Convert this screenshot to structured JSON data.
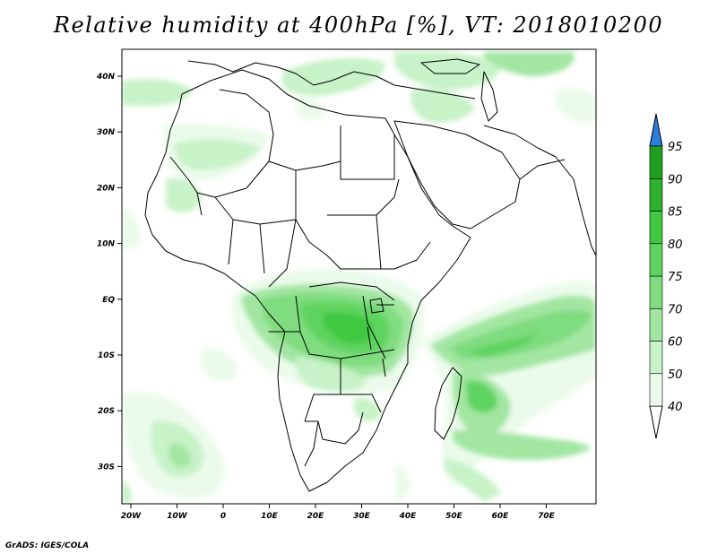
{
  "title": "Relative humidity at 400hPa [%], VT: 2018010200",
  "credit": "GrADS: IGES/COLA",
  "map": {
    "lon_labels": [
      "20W",
      "10W",
      "0",
      "10E",
      "20E",
      "30E",
      "40E",
      "50E",
      "60E",
      "70E"
    ],
    "lat_labels": [
      "40N",
      "30N",
      "20N",
      "10N",
      "EQ",
      "10S",
      "20S",
      "30S"
    ],
    "frame_color": "#000000"
  },
  "colorbar": {
    "levels": [
      "40",
      "50",
      "60",
      "70",
      "75",
      "80",
      "85",
      "90",
      "95"
    ],
    "colors": [
      "#ebfbeb",
      "#c8f2c8",
      "#a2e6a2",
      "#7fdc7f",
      "#5ed35e",
      "#40c840",
      "#2db22d",
      "#1f9e1f"
    ],
    "top_arrow_color": "#2b7de0",
    "bottom_arrow_color": "#ffffff"
  },
  "field_colors": {
    "c40": "#ebfbeb",
    "c50": "#c8f2c8",
    "c60": "#a2e6a2",
    "c70": "#7fdc7f",
    "c80": "#5ed35e",
    "c85": "#40c840",
    "c90": "#2db22d"
  }
}
